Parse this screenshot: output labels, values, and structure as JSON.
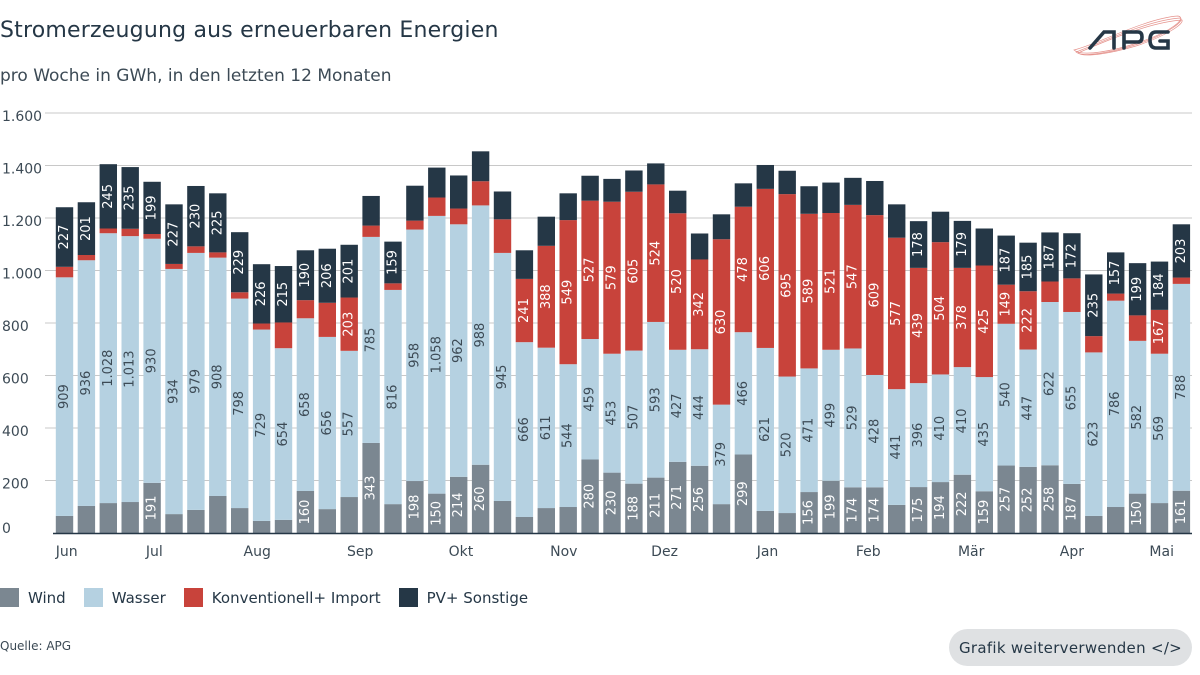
{
  "header": {
    "title": "Stromerzeugung aus erneuerbaren Energien",
    "subtitle": "pro Woche in GWh, in den letzten 12 Monaten",
    "logo_text": "APG"
  },
  "footer": {
    "source": "Quelle: APG",
    "reuse_button": "Grafik weiterverwenden </>"
  },
  "chart_data": {
    "type": "bar",
    "stacked": true,
    "title": "Stromerzeugung aus erneuerbaren Energien",
    "subtitle": "pro Woche in GWh, in den letzten 12 Monaten",
    "ylim": [
      0,
      1600
    ],
    "yticks": [
      0,
      200,
      400,
      600,
      800,
      1000,
      1200,
      1400,
      1600
    ],
    "ytick_labels": [
      "0",
      "200",
      "400",
      "600",
      "800",
      "1.000",
      "1.200",
      "1.400",
      "1.600"
    ],
    "grid": true,
    "legend_position": "bottom-left",
    "month_labels": [
      {
        "label": "Jun",
        "week": 0.1
      },
      {
        "label": "Jul",
        "week": 4.1
      },
      {
        "label": "Aug",
        "week": 8.8
      },
      {
        "label": "Sep",
        "week": 13.5
      },
      {
        "label": "Okt",
        "week": 18.1
      },
      {
        "label": "Nov",
        "week": 22.8
      },
      {
        "label": "Dez",
        "week": 27.4
      },
      {
        "label": "Jan",
        "week": 32.1
      },
      {
        "label": "Feb",
        "week": 36.7
      },
      {
        "label": "Mär",
        "week": 41.4
      },
      {
        "label": "Apr",
        "week": 46
      },
      {
        "label": "Mai",
        "week": 50.1
      }
    ],
    "series": [
      {
        "name": "Wind",
        "color": "#7b8791",
        "label_color": "#ffffff",
        "values": [
          65,
          103,
          114,
          118,
          191,
          72,
          88,
          141,
          95,
          46,
          50,
          160,
          91,
          137,
          343,
          110,
          198,
          150,
          214,
          260,
          122,
          61,
          95,
          99,
          280,
          230,
          188,
          211,
          271,
          256,
          110,
          299,
          84,
          76,
          156,
          199,
          174,
          174,
          107,
          175,
          194,
          222,
          159,
          257,
          252,
          258,
          187,
          65,
          99,
          150,
          114,
          161
        ]
      },
      {
        "name": "Wasser",
        "color": "#b5d1e1",
        "label_color": "#3c4a55",
        "values": [
          909,
          936,
          1028,
          1013,
          930,
          934,
          979,
          908,
          798,
          729,
          654,
          658,
          656,
          557,
          785,
          816,
          958,
          1058,
          962,
          988,
          945,
          666,
          611,
          544,
          459,
          453,
          507,
          593,
          427,
          444,
          379,
          466,
          621,
          520,
          471,
          499,
          529,
          428,
          441,
          396,
          410,
          410,
          435,
          540,
          447,
          622,
          655,
          623,
          786,
          582,
          569,
          788
        ]
      },
      {
        "name": "Konventionell+ Import",
        "color": "#c8433b",
        "label_color": "#ffffff",
        "values": [
          40,
          20,
          18,
          28,
          18,
          19,
          25,
          20,
          24,
          23,
          98,
          69,
          130,
          203,
          43,
          25,
          34,
          70,
          60,
          92,
          128,
          241,
          388,
          549,
          527,
          579,
          605,
          524,
          520,
          342,
          630,
          478,
          606,
          695,
          589,
          521,
          547,
          609,
          577,
          439,
          504,
          378,
          425,
          149,
          222,
          78,
          128,
          62,
          27,
          97,
          167,
          24
        ]
      },
      {
        "name": "PV+ Sonstige",
        "color": "#253746",
        "label_color": "#ffffff",
        "values": [
          227,
          201,
          245,
          235,
          199,
          227,
          230,
          225,
          229,
          226,
          215,
          190,
          206,
          201,
          113,
          159,
          133,
          114,
          126,
          114,
          106,
          109,
          111,
          102,
          95,
          87,
          81,
          80,
          86,
          99,
          95,
          89,
          91,
          89,
          105,
          116,
          103,
          130,
          127,
          178,
          116,
          179,
          141,
          187,
          185,
          187,
          172,
          235,
          157,
          199,
          184,
          203
        ]
      }
    ]
  }
}
